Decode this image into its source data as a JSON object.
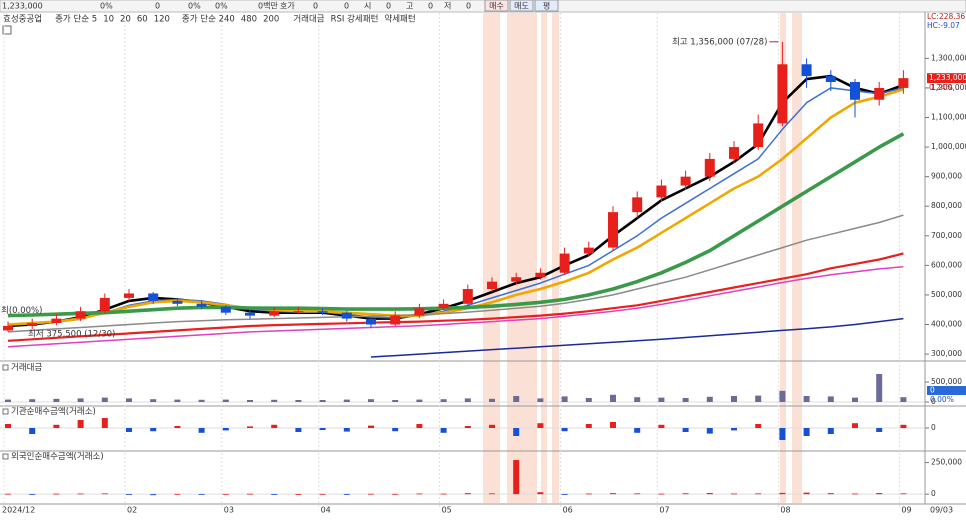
{
  "header": {
    "cells": [
      "1,233,000",
      "0%",
      "0",
      "0%",
      "0%",
      "0백만",
      "호가",
      "0",
      "0",
      "시",
      "0",
      "고",
      "0",
      "저",
      "0"
    ],
    "buttons": [
      "매수",
      "매도",
      "평"
    ]
  },
  "chart_data": [
    {
      "type": "candlestick",
      "title": "효성중공업",
      "categories": [
        "2024/12",
        null,
        null,
        null,
        null,
        "02",
        null,
        null,
        null,
        "03",
        null,
        null,
        null,
        "04",
        null,
        null,
        null,
        null,
        "05",
        null,
        null,
        null,
        null,
        "06",
        null,
        null,
        null,
        "07",
        null,
        null,
        null,
        null,
        "08",
        null,
        null,
        null,
        null,
        "09"
      ],
      "x_end_label": "09/03",
      "open": [
        380000,
        395000,
        405000,
        420000,
        445000,
        490000,
        505000,
        480000,
        470000,
        460000,
        440000,
        430000,
        445000,
        445000,
        440000,
        420000,
        400000,
        430000,
        455000,
        470000,
        520000,
        545000,
        560000,
        575000,
        640000,
        660000,
        780000,
        830000,
        870000,
        900000,
        960000,
        1000000,
        1080000,
        1280000,
        1240000,
        1220000,
        1160000,
        1200000
      ],
      "high": [
        410000,
        420000,
        435000,
        460000,
        505000,
        520000,
        510000,
        490000,
        480000,
        465000,
        450000,
        460000,
        460000,
        455000,
        445000,
        425000,
        445000,
        470000,
        485000,
        535000,
        560000,
        575000,
        590000,
        660000,
        680000,
        800000,
        850000,
        890000,
        920000,
        980000,
        1020000,
        1110000,
        1356000,
        1300000,
        1260000,
        1230000,
        1220000,
        1260000
      ],
      "low": [
        375500,
        385000,
        398000,
        412000,
        435000,
        480000,
        470000,
        462000,
        452000,
        432000,
        420000,
        425000,
        435000,
        432000,
        410000,
        390000,
        395000,
        422000,
        448000,
        462000,
        510000,
        535000,
        552000,
        568000,
        630000,
        650000,
        760000,
        815000,
        855000,
        885000,
        945000,
        990000,
        1070000,
        1200000,
        1190000,
        1100000,
        1140000,
        1180000
      ],
      "close": [
        395000,
        405000,
        420000,
        445000,
        490000,
        505000,
        480000,
        470000,
        460000,
        440000,
        430000,
        445000,
        445000,
        440000,
        420000,
        400000,
        430000,
        455000,
        470000,
        520000,
        545000,
        560000,
        575000,
        640000,
        660000,
        780000,
        830000,
        870000,
        900000,
        960000,
        1000000,
        1080000,
        1280000,
        1240000,
        1220000,
        1160000,
        1200000,
        1233000
      ],
      "up_color": "#e8201c",
      "down_color": "#1450d8",
      "series": [
        {
          "name": "종가 단순 5",
          "color": "#000000",
          "width": 2.6,
          "values": [
            395000,
            400000,
            410000,
            425000,
            450000,
            480000,
            490000,
            485000,
            475000,
            460000,
            445000,
            440000,
            440000,
            440000,
            430000,
            420000,
            420000,
            435000,
            455000,
            480000,
            510000,
            540000,
            560000,
            600000,
            635000,
            700000,
            760000,
            820000,
            860000,
            900000,
            950000,
            1010000,
            1150000,
            1230000,
            1240000,
            1200000,
            1180000,
            1210000
          ]
        },
        {
          "name": "10",
          "color": "#3b6fd8",
          "width": 1.5,
          "values": [
            398000,
            402000,
            408000,
            418000,
            440000,
            465000,
            480000,
            485000,
            480000,
            468000,
            452000,
            445000,
            442000,
            442000,
            435000,
            425000,
            422000,
            430000,
            445000,
            465000,
            490000,
            515000,
            540000,
            570000,
            600000,
            650000,
            700000,
            760000,
            810000,
            860000,
            910000,
            960000,
            1060000,
            1150000,
            1200000,
            1190000,
            1180000,
            1200000
          ]
        },
        {
          "name": "20",
          "color": "#f0a800",
          "width": 2.6,
          "values": [
            400000,
            405000,
            410000,
            420000,
            440000,
            460000,
            475000,
            480000,
            475000,
            465000,
            455000,
            450000,
            445000,
            445000,
            440000,
            435000,
            430000,
            430000,
            440000,
            455000,
            475000,
            500000,
            520000,
            545000,
            575000,
            620000,
            660000,
            710000,
            760000,
            810000,
            860000,
            900000,
            960000,
            1030000,
            1100000,
            1150000,
            1170000,
            1195000
          ]
        },
        {
          "name": "60",
          "color": "#3a9a4a",
          "width": 3.6,
          "values": [
            430000,
            432000,
            435000,
            438000,
            440000,
            445000,
            450000,
            455000,
            458000,
            458000,
            456000,
            455000,
            455000,
            454000,
            452000,
            452000,
            452000,
            453000,
            455000,
            458000,
            462000,
            468000,
            475000,
            485000,
            500000,
            520000,
            545000,
            575000,
            610000,
            650000,
            700000,
            750000,
            800000,
            850000,
            900000,
            950000,
            1000000,
            1045000
          ]
        },
        {
          "name": "120",
          "color": "#8a8a8a",
          "width": 1.5,
          "values": [
            375000,
            380000,
            385000,
            390000,
            395000,
            400000,
            405000,
            410000,
            413000,
            416000,
            418000,
            420000,
            422000,
            424000,
            426000,
            428000,
            430000,
            433000,
            437000,
            442000,
            448000,
            455000,
            462000,
            472000,
            485000,
            500000,
            520000,
            540000,
            560000,
            585000,
            610000,
            635000,
            660000,
            685000,
            705000,
            725000,
            745000,
            770000
          ]
        },
        {
          "name": "종가 단순 240",
          "color": "#e040c0",
          "width": 1.5,
          "values": [
            325000,
            330000,
            335000,
            340000,
            345000,
            350000,
            355000,
            360000,
            365000,
            370000,
            375000,
            378000,
            381000,
            384000,
            387000,
            390000,
            393000,
            396000,
            400000,
            405000,
            410000,
            415000,
            420000,
            428000,
            436000,
            445000,
            455000,
            468000,
            482000,
            497000,
            512000,
            527000,
            542000,
            556000,
            568000,
            578000,
            588000,
            595000
          ]
        },
        {
          "name": "480",
          "color": "#1a2a9a",
          "width": 1.5,
          "values": [
            null,
            null,
            null,
            null,
            null,
            null,
            null,
            null,
            null,
            null,
            null,
            null,
            null,
            null,
            null,
            290000,
            295000,
            300000,
            305000,
            310000,
            315000,
            320000,
            325000,
            330000,
            335000,
            340000,
            345000,
            350000,
            356000,
            362000,
            368000,
            374000,
            380000,
            386000,
            392000,
            400000,
            410000,
            420000
          ]
        },
        {
          "name": "200",
          "color": "#e82020",
          "width": 2.2,
          "values": [
            345000,
            350000,
            355000,
            360000,
            365000,
            370000,
            375000,
            380000,
            385000,
            390000,
            395000,
            398000,
            400000,
            402000,
            404000,
            406000,
            408000,
            410000,
            413000,
            416000,
            420000,
            425000,
            430000,
            437000,
            445000,
            455000,
            465000,
            480000,
            495000,
            510000,
            525000,
            540000,
            555000,
            570000,
            590000,
            605000,
            620000,
            640000
          ]
        }
      ],
      "legend_extra": [
        "RSI 강세패턴",
        "약세패턴"
      ],
      "ylim": [
        280000,
        1450000
      ],
      "yticks": [
        {
          "value": 300000,
          "label": "300,000"
        },
        {
          "value": 400000,
          "label": "400,000"
        },
        {
          "value": 500000,
          "label": "500,000"
        },
        {
          "value": 600000,
          "label": "600,000"
        },
        {
          "value": 700000,
          "label": "700,000"
        },
        {
          "value": 800000,
          "label": "800,000"
        },
        {
          "value": 900000,
          "label": "900,000"
        },
        {
          "value": 1000000,
          "label": "1,000,000"
        },
        {
          "value": 1100000,
          "label": "1,100,000"
        },
        {
          "value": 1200000,
          "label": "1,200,000"
        },
        {
          "value": 1300000,
          "label": "1,300,000"
        }
      ],
      "annotations": {
        "high": "최고 1,356,000 (07/28)",
        "low": "최저 375,500 (12/30)",
        "start": "최(0.00%)"
      },
      "price_tag": {
        "value": 1233000,
        "label": "1,233,000",
        "change": "0.24%"
      },
      "corner_labels": [
        "LC:228.36",
        "HC:-9.07"
      ]
    },
    {
      "type": "bar",
      "title": "거래대금",
      "color": "#6b6b98",
      "values": [
        60000,
        70000,
        80000,
        90000,
        110000,
        90000,
        70000,
        60000,
        55000,
        60000,
        50000,
        55000,
        50000,
        50000,
        60000,
        70000,
        50000,
        60000,
        70000,
        90000,
        80000,
        150000,
        90000,
        140000,
        100000,
        180000,
        120000,
        110000,
        100000,
        130000,
        150000,
        160000,
        280000,
        150000,
        140000,
        110000,
        700000,
        120000
      ],
      "ylim": [
        0,
        900000
      ],
      "yticks": [
        0,
        {
          "value": 500000,
          "label": "500,000"
        }
      ],
      "tag": {
        "label": "0",
        "change": "0.00%"
      }
    },
    {
      "type": "bar",
      "title": "기관순매수금액(거래소)",
      "up_color": "#e8201c",
      "down_color": "#1450d8",
      "values": [
        10000,
        -15000,
        8000,
        20000,
        25000,
        -10000,
        -8000,
        5000,
        -12000,
        -6000,
        4000,
        8000,
        -10000,
        -5000,
        -9000,
        6000,
        -8000,
        10000,
        -12000,
        5000,
        8000,
        -20000,
        12000,
        -8000,
        10000,
        15000,
        -12000,
        8000,
        -10000,
        -14000,
        -6000,
        10000,
        -30000,
        -20000,
        -15000,
        12000,
        -10000,
        8000
      ],
      "ylim": [
        -45000,
        45000
      ],
      "yticks": [
        0
      ]
    },
    {
      "type": "bar",
      "title": "외국인순매수금액(거래소)",
      "up_color": "#e8201c",
      "down_color": "#1450d8",
      "values": [
        3000,
        -2000,
        4000,
        5000,
        6000,
        -3000,
        -8000,
        2000,
        -3000,
        2000,
        3000,
        -2000,
        1000,
        2000,
        -4000,
        3000,
        2000,
        5000,
        4000,
        8000,
        6000,
        270000,
        15000,
        -5000,
        5000,
        8000,
        6000,
        4000,
        7000,
        9000,
        5000,
        6000,
        10000,
        12000,
        8000,
        5000,
        9000,
        6000
      ],
      "ylim": [
        -70000,
        310000
      ],
      "yticks": [
        0,
        {
          "value": 250000,
          "label": "250,000"
        }
      ]
    }
  ]
}
